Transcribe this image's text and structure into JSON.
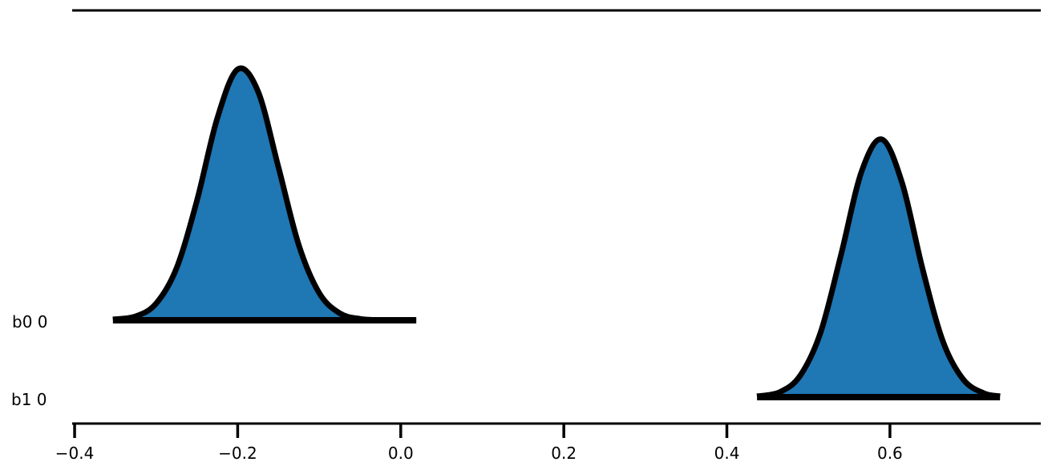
{
  "chart_data": {
    "type": "area",
    "title": "",
    "xlabel": "",
    "ylabel": "",
    "xlim": [
      -0.403,
      0.785
    ],
    "x_ticks": [
      -0.4,
      -0.2,
      0.0,
      0.2,
      0.4,
      0.6
    ],
    "x_tick_labels": [
      "−0.4",
      "−0.2",
      "0.0",
      "0.2",
      "0.4",
      "0.6"
    ],
    "y_categories": [
      "b0 0",
      "b1 0"
    ],
    "grid": false,
    "fill_color": "#1f77b4",
    "line_color": "#000000",
    "series": [
      {
        "label": "b0 0",
        "x": [
          -0.353,
          -0.325,
          -0.3,
          -0.275,
          -0.25,
          -0.225,
          -0.2,
          -0.175,
          -0.15,
          -0.125,
          -0.1,
          -0.075,
          -0.05,
          -0.025,
          0.0,
          0.019
        ],
        "density": [
          0.03,
          0.14,
          0.59,
          1.83,
          4.2,
          7.1,
          8.82,
          8.04,
          5.38,
          2.64,
          0.96,
          0.25,
          0.05,
          0.008,
          0.001,
          0.0
        ]
      },
      {
        "label": "b1 0",
        "x": [
          0.437,
          0.465,
          0.49,
          0.515,
          0.54,
          0.565,
          0.59,
          0.615,
          0.64,
          0.665,
          0.69,
          0.715,
          0.735
        ],
        "density": [
          0.03,
          0.18,
          0.76,
          2.28,
          5.0,
          7.91,
          9.06,
          7.52,
          4.51,
          1.96,
          0.62,
          0.14,
          0.03
        ]
      }
    ]
  }
}
